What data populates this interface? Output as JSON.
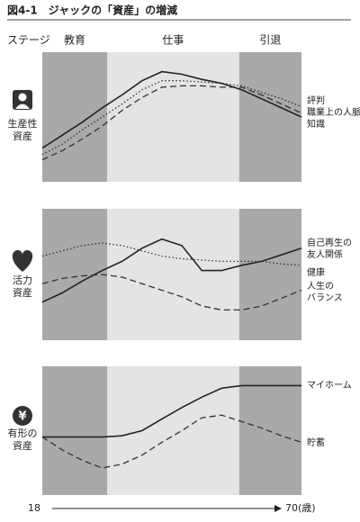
{
  "title": "図4-1　ジャックの「資産」の増減",
  "stage_label": "ステージ",
  "stages": [
    {
      "name": "教育",
      "start": 18,
      "end": 31
    },
    {
      "name": "仕事",
      "start": 31,
      "end": 57.5
    },
    {
      "name": "引退",
      "start": 57.5,
      "end": 70
    }
  ],
  "x_axis": {
    "xlim": [
      18,
      70
    ],
    "xticks": [
      18,
      {
        "value": 70,
        "label": "70(歳)"
      }
    ]
  },
  "chart_data": [
    {
      "type": "line",
      "row_label": [
        "生産性",
        "資産"
      ],
      "ylim": [
        0,
        100
      ],
      "x": [
        18,
        22,
        26,
        30,
        34,
        38,
        42,
        46,
        50,
        54,
        58,
        62,
        66,
        70
      ],
      "series": [
        {
          "name": [
            "評判"
          ],
          "style": "dotted",
          "color": "#333",
          "values": [
            21,
            29,
            40,
            50,
            60,
            71,
            78,
            78,
            77,
            76,
            74,
            69,
            64,
            58
          ]
        },
        {
          "name": [
            "職業上の人脈"
          ],
          "style": "dashed",
          "color": "#333",
          "values": [
            17,
            24,
            33,
            43,
            55,
            65,
            73,
            74,
            74,
            73,
            73,
            67,
            60,
            53
          ]
        },
        {
          "name": [
            "知識"
          ],
          "style": "solid",
          "color": "#222",
          "values": [
            26,
            36,
            46,
            57,
            67,
            78,
            85,
            83,
            79,
            76,
            71,
            64,
            57,
            50
          ]
        }
      ]
    },
    {
      "type": "line",
      "row_label": [
        "活力",
        "資産"
      ],
      "ylim": [
        0,
        100
      ],
      "x": [
        18,
        22,
        26,
        30,
        34,
        38,
        42,
        46,
        50,
        54,
        58,
        62,
        66,
        70
      ],
      "series": [
        {
          "name": [
            "自己再生の",
            "友人関係"
          ],
          "style": "solid",
          "color": "#222",
          "values": [
            29,
            36,
            45,
            53,
            60,
            70,
            77,
            72,
            53,
            53,
            57,
            60,
            65,
            70
          ]
        },
        {
          "name": [
            "健康"
          ],
          "style": "dotted",
          "color": "#333",
          "values": [
            64,
            68,
            72,
            74,
            72,
            68,
            64,
            62,
            61,
            60,
            60,
            60,
            58,
            57
          ]
        },
        {
          "name": [
            "人生の",
            "バランス"
          ],
          "style": "dashed",
          "color": "#333",
          "values": [
            43,
            47,
            49,
            50,
            48,
            43,
            38,
            33,
            26,
            23,
            23,
            26,
            32,
            38
          ]
        }
      ]
    },
    {
      "type": "line",
      "row_label": [
        "有形の",
        "資産"
      ],
      "ylim": [
        0,
        100
      ],
      "x": [
        18,
        22,
        26,
        30,
        34,
        38,
        42,
        46,
        50,
        54,
        58,
        62,
        66,
        70
      ],
      "series": [
        {
          "name": [
            "マイホーム"
          ],
          "style": "solid",
          "color": "#222",
          "values": [
            45,
            45,
            45,
            45,
            46,
            50,
            59,
            68,
            76,
            83,
            85,
            85,
            85,
            85
          ]
        },
        {
          "name": [
            "貯蓄"
          ],
          "style": "dashed",
          "color": "#333",
          "values": [
            45,
            35,
            27,
            21,
            24,
            31,
            41,
            50,
            60,
            62,
            57,
            52,
            46,
            41
          ]
        }
      ]
    }
  ]
}
